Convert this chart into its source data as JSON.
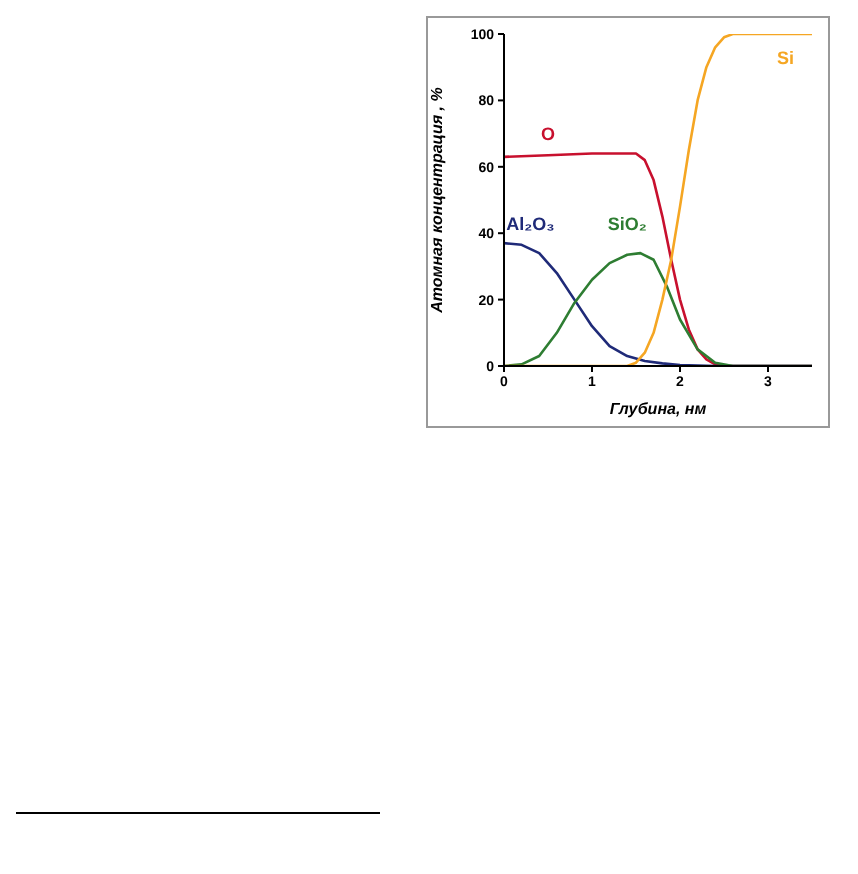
{
  "chart_data": {
    "type": "line",
    "xlabel": "Глубина, нм",
    "ylabel": "Атомная концентрация , %",
    "xlim": [
      0,
      3.5
    ],
    "xticks": [
      0,
      1,
      2,
      3
    ],
    "ylim": [
      0,
      100
    ],
    "yticks": [
      0,
      20,
      40,
      60,
      80,
      100
    ],
    "grid": false,
    "legend": false,
    "marker": "none",
    "line_style": "solid",
    "series": [
      {
        "name": "O",
        "color": "#c8102e",
        "x": [
          0,
          0.5,
          1,
          1.5,
          1.6,
          1.7,
          1.8,
          1.9,
          2.0,
          2.1,
          2.2,
          2.3,
          2.4,
          2.5,
          3.5
        ],
        "values": [
          63,
          63.5,
          64,
          64,
          62,
          56,
          45,
          32,
          20,
          11,
          5,
          2,
          0.5,
          0,
          0
        ]
      },
      {
        "name": "Al₂O₃",
        "color": "#1f2a78",
        "x": [
          0,
          0.2,
          0.4,
          0.6,
          0.8,
          1.0,
          1.2,
          1.4,
          1.6,
          1.8,
          2.0,
          2.4,
          3.5
        ],
        "values": [
          37,
          36.5,
          34,
          28,
          20,
          12,
          6,
          3,
          1.5,
          0.8,
          0.3,
          0,
          0
        ]
      },
      {
        "name": "SiO₂",
        "color": "#2e7d32",
        "x": [
          0,
          0.2,
          0.4,
          0.6,
          0.8,
          1.0,
          1.2,
          1.4,
          1.55,
          1.7,
          1.85,
          2.0,
          2.2,
          2.4,
          2.6,
          3.5
        ],
        "values": [
          0,
          0.5,
          3,
          10,
          19,
          26,
          31,
          33.5,
          34,
          32,
          24,
          14,
          5,
          1,
          0,
          0
        ]
      },
      {
        "name": "Si",
        "color": "#f5a623",
        "x": [
          0,
          1.4,
          1.5,
          1.6,
          1.7,
          1.8,
          1.9,
          2.0,
          2.1,
          2.2,
          2.3,
          2.4,
          2.5,
          2.6,
          3.5
        ],
        "values": [
          0,
          0,
          1,
          4,
          10,
          20,
          32,
          48,
          65,
          80,
          90,
          96,
          99,
          100,
          100
        ]
      }
    ]
  }
}
